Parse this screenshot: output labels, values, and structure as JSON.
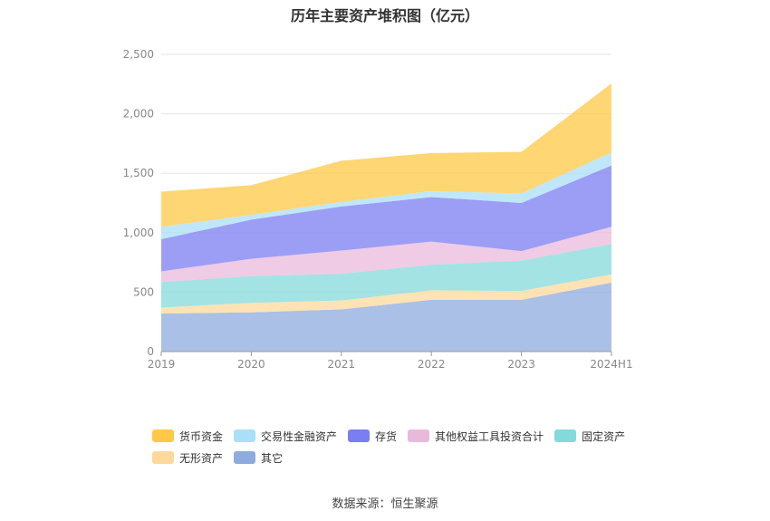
{
  "chart_data": {
    "type": "area",
    "stacked": true,
    "title": "历年主要资产堆积图（亿元）",
    "categories": [
      "2019",
      "2020",
      "2021",
      "2022",
      "2023",
      "2024H1"
    ],
    "ylim": [
      0,
      2500
    ],
    "yticks": [
      0,
      500,
      1000,
      1500,
      2000,
      2500
    ],
    "ytick_labels": [
      "0",
      "500",
      "1,000",
      "1,500",
      "2,000",
      "2,500"
    ],
    "grid": true,
    "legend_position": "bottom",
    "series": [
      {
        "name": "其它",
        "color": "#8eabde",
        "values": [
          320,
          330,
          355,
          435,
          435,
          580
        ]
      },
      {
        "name": "无形资产",
        "color": "#ffd99b",
        "values": [
          50,
          80,
          75,
          80,
          75,
          70
        ]
      },
      {
        "name": "固定资产",
        "color": "#84dada",
        "values": [
          215,
          225,
          225,
          215,
          255,
          255
        ]
      },
      {
        "name": "其他权益工具投资合计",
        "color": "#e9b9dc",
        "values": [
          90,
          145,
          195,
          195,
          80,
          145
        ]
      },
      {
        "name": "存货",
        "color": "#7b7ef2",
        "values": [
          270,
          330,
          370,
          375,
          405,
          515
        ]
      },
      {
        "name": "交易性金融资产",
        "color": "#a9dff7",
        "values": [
          105,
          40,
          40,
          50,
          80,
          110
        ]
      },
      {
        "name": "货币资金",
        "color": "#ffc846",
        "values": [
          295,
          250,
          345,
          320,
          350,
          580
        ]
      }
    ],
    "legend_order": [
      "货币资金",
      "交易性金融资产",
      "存货",
      "其他权益工具投资合计",
      "固定资产",
      "无形资产",
      "其它"
    ]
  },
  "source_text": "数据来源：恒生聚源"
}
